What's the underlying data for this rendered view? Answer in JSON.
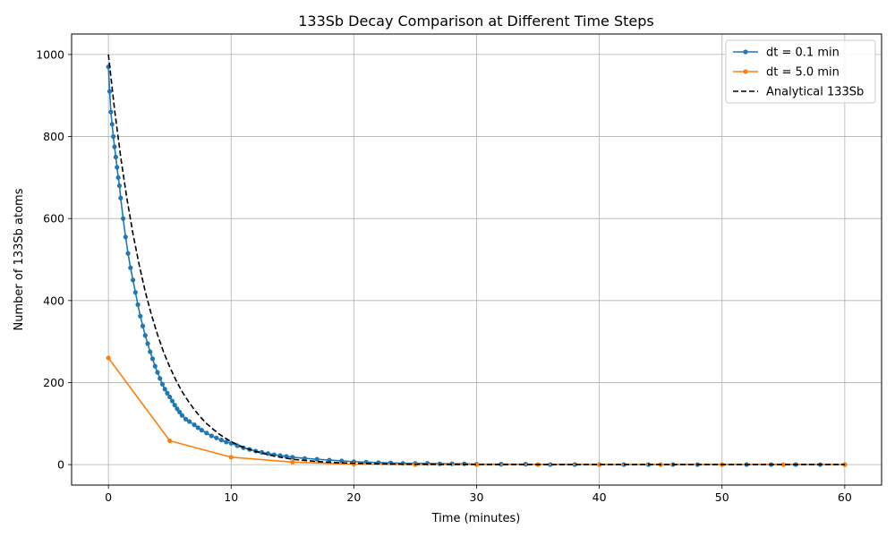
{
  "chart_data": {
    "type": "line",
    "title": "133Sb Decay Comparison at Different Time Steps",
    "xlabel": "Time (minutes)",
    "ylabel": "Number of 133Sb atoms",
    "xlim": [
      -3,
      63
    ],
    "ylim": [
      -50,
      1050
    ],
    "xticks": [
      0,
      10,
      20,
      30,
      40,
      50,
      60
    ],
    "xtick_labels": [
      "0",
      "10",
      "20",
      "30",
      "40",
      "50",
      "60"
    ],
    "yticks": [
      0,
      200,
      400,
      600,
      800,
      1000
    ],
    "ytick_labels": [
      "0",
      "200",
      "400",
      "600",
      "800",
      "1000"
    ],
    "grid": true,
    "legend_position": "top-right",
    "series": [
      {
        "name": "dt = 0.1 min",
        "color": "#1f77b4",
        "style": "solid-marker",
        "x": [
          0,
          0.1,
          0.2,
          0.3,
          0.4,
          0.5,
          0.6,
          0.7,
          0.8,
          0.9,
          1.0,
          1.2,
          1.4,
          1.6,
          1.8,
          2.0,
          2.2,
          2.4,
          2.6,
          2.8,
          3.0,
          3.2,
          3.4,
          3.6,
          3.8,
          4.0,
          4.2,
          4.4,
          4.6,
          4.8,
          5.0,
          5.2,
          5.4,
          5.6,
          5.8,
          6.0,
          6.3,
          6.6,
          7.0,
          7.3,
          7.6,
          8.0,
          8.4,
          8.8,
          9.2,
          9.6,
          10.0,
          10.5,
          11.0,
          11.5,
          12.0,
          12.5,
          13.0,
          13.5,
          14.0,
          14.5,
          15.0,
          16.0,
          17.0,
          18.0,
          19.0,
          20.0,
          21.0,
          22.0,
          23.0,
          24.0,
          25.0,
          26.0,
          27.0,
          28.0,
          29.0,
          30.0,
          32.0,
          34.0,
          36.0,
          38.0,
          40.0,
          42.0,
          44.0,
          46.0,
          48.0,
          50.0,
          52.0,
          54.0,
          56.0,
          58.0,
          60.0
        ],
        "y": [
          970,
          910,
          860,
          830,
          800,
          775,
          750,
          725,
          700,
          680,
          650,
          600,
          555,
          515,
          480,
          450,
          420,
          390,
          362,
          338,
          315,
          295,
          275,
          258,
          240,
          225,
          210,
          196,
          184,
          174,
          165,
          155,
          145,
          136,
          128,
          120,
          111,
          105,
          97,
          90,
          84,
          77,
          70,
          65,
          60,
          55,
          52,
          46,
          41,
          37,
          33,
          30,
          27,
          24,
          22,
          20,
          18,
          15,
          13,
          11,
          9,
          7,
          6,
          5,
          4,
          3,
          3,
          3,
          2,
          2,
          2,
          1,
          1,
          1,
          0,
          0,
          0,
          0,
          0,
          0,
          0,
          0,
          0,
          0,
          0,
          0,
          0
        ]
      },
      {
        "name": "dt = 5.0 min",
        "color": "#ff7f0e",
        "style": "solid-marker",
        "x": [
          0,
          5,
          10,
          15,
          20,
          25,
          30,
          35,
          40,
          45,
          50,
          55,
          60
        ],
        "y": [
          260,
          58,
          18,
          6,
          1,
          0,
          0,
          0,
          0,
          0,
          0,
          0,
          0
        ]
      },
      {
        "name": "Analytical 133Sb",
        "color": "#000000",
        "style": "dashed",
        "x": [
          0,
          0.5,
          1,
          1.5,
          2,
          2.5,
          3,
          3.5,
          4,
          4.5,
          5,
          5.5,
          6,
          6.5,
          7,
          7.5,
          8,
          8.5,
          9,
          9.5,
          10,
          11,
          12,
          13,
          14,
          15,
          16,
          17,
          18,
          19,
          20,
          22,
          24,
          26,
          28,
          30,
          35,
          40,
          45,
          50,
          55,
          60
        ],
        "y": [
          1000,
          866,
          750,
          650,
          563,
          488,
          422,
          366,
          317,
          274,
          238,
          206,
          178,
          155,
          134,
          116,
          100,
          87,
          75,
          65,
          56,
          42,
          32,
          24,
          18,
          13,
          10,
          7.5,
          5.6,
          4.2,
          3.2,
          1.8,
          1.0,
          0.6,
          0.3,
          0.2,
          0,
          0,
          0,
          0,
          0,
          0
        ]
      }
    ]
  }
}
